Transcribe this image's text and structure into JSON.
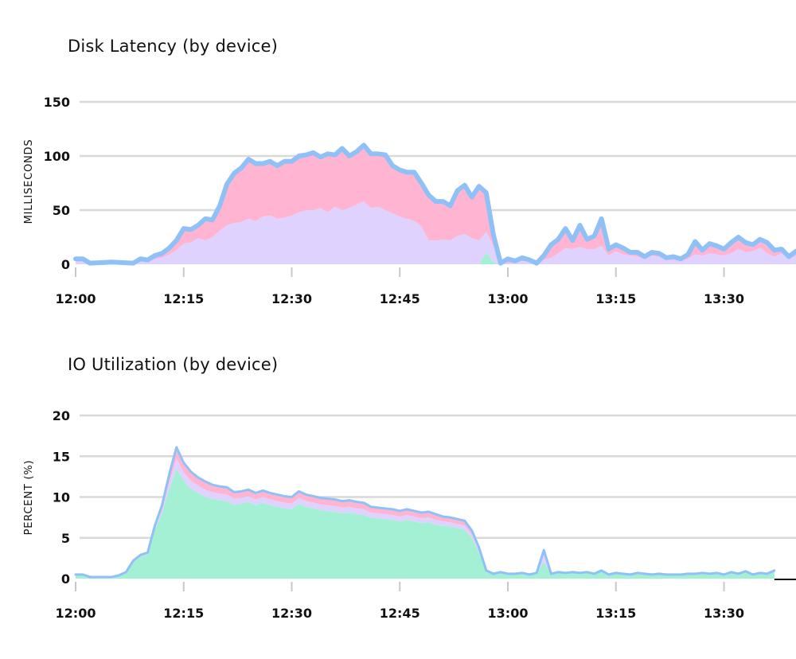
{
  "colors": {
    "green": "#a3f0d4",
    "violet": "#e0d2ff",
    "pink": "#ffb5d2",
    "outline": "#8fc1f7",
    "grid": "#d9d9d9"
  },
  "chart_data": [
    {
      "type": "area",
      "stacked": true,
      "title": "Disk Latency (by device)",
      "xlabel": "",
      "ylabel": "MILLISECONDS",
      "ylim": [
        0,
        150
      ],
      "xlim": [
        "12:00",
        "13:40"
      ],
      "x_ticks": [
        "12:00",
        "12:15",
        "12:30",
        "12:45",
        "13:00",
        "13:15",
        "13:30"
      ],
      "y_ticks": [
        "0",
        "50",
        "100",
        "150"
      ],
      "x_unit_minutes_from": "12:00",
      "x": [
        0,
        1,
        2,
        5,
        8,
        9,
        10,
        11,
        12,
        13,
        14,
        15,
        16,
        17,
        18,
        19,
        20,
        21,
        22,
        23,
        24,
        25,
        26,
        27,
        28,
        29,
        30,
        31,
        32,
        33,
        34,
        35,
        36,
        37,
        38,
        39,
        40,
        41,
        42,
        43,
        44,
        45,
        46,
        47,
        48,
        49,
        50,
        51,
        52,
        53,
        54,
        55,
        56,
        57,
        58,
        59,
        60,
        61,
        62,
        63,
        64,
        65,
        66,
        67,
        68,
        69,
        70,
        71,
        72,
        73,
        74,
        75,
        76,
        77,
        78,
        79,
        80,
        81,
        82,
        83,
        84,
        85,
        86,
        87,
        88,
        89,
        90,
        91,
        92,
        93,
        94,
        95,
        96,
        97,
        98,
        99,
        100
      ],
      "series": [
        {
          "color_key": "green",
          "values": [
            0,
            0,
            0,
            0,
            0,
            0,
            0,
            0,
            0,
            0,
            0,
            0,
            0,
            0,
            0,
            0,
            0,
            0,
            0,
            0,
            0,
            0,
            0,
            0,
            0,
            0,
            0,
            0,
            0,
            0,
            0,
            0,
            0,
            0,
            0,
            0,
            0,
            0,
            0,
            0,
            0,
            0,
            0,
            0,
            0,
            0,
            0,
            0,
            0,
            0,
            0,
            0,
            0,
            11,
            2,
            0,
            0,
            0,
            0,
            0,
            0,
            0,
            0,
            0,
            0,
            0,
            0,
            0,
            0,
            0,
            0,
            0,
            0,
            0,
            0,
            0,
            0,
            0,
            0,
            0,
            0,
            0,
            0,
            0,
            0,
            0,
            0,
            0,
            0,
            0,
            0,
            0,
            0,
            0,
            0,
            0,
            0
          ]
        },
        {
          "color_key": "violet",
          "values": [
            5,
            5,
            1,
            2,
            1,
            3,
            2,
            5,
            6,
            9,
            13,
            19,
            20,
            24,
            22,
            25,
            31,
            36,
            38,
            39,
            42,
            40,
            44,
            45,
            42,
            43,
            45,
            48,
            50,
            50,
            52,
            48,
            53,
            50,
            52,
            55,
            58,
            52,
            53,
            50,
            47,
            44,
            42,
            40,
            35,
            22,
            22,
            23,
            22,
            26,
            28,
            24,
            22,
            19,
            15,
            1,
            1,
            1,
            3,
            2,
            1,
            4,
            6,
            10,
            15,
            14,
            16,
            14,
            14,
            17,
            8,
            12,
            9,
            8,
            7,
            5,
            8,
            7,
            4,
            4,
            3,
            5,
            9,
            8,
            10,
            9,
            8,
            10,
            14,
            11,
            12,
            15,
            10,
            7,
            10,
            5,
            8
          ]
        },
        {
          "color_key": "pink",
          "values": [
            0,
            0,
            0,
            0,
            0,
            2,
            2,
            3,
            4,
            6,
            9,
            14,
            12,
            12,
            20,
            16,
            23,
            38,
            46,
            50,
            55,
            53,
            49,
            50,
            49,
            52,
            50,
            52,
            51,
            53,
            47,
            54,
            48,
            57,
            48,
            49,
            52,
            50,
            49,
            51,
            44,
            43,
            43,
            45,
            40,
            42,
            36,
            35,
            32,
            42,
            45,
            38,
            50,
            36,
            10,
            0,
            4,
            2,
            3,
            2,
            0,
            4,
            12,
            13,
            18,
            8,
            20,
            9,
            12,
            25,
            6,
            6,
            6,
            3,
            4,
            2,
            3,
            3,
            2,
            3,
            2,
            4,
            12,
            5,
            9,
            8,
            6,
            10,
            11,
            9,
            6,
            8,
            10,
            6,
            4,
            2,
            4
          ]
        }
      ]
    },
    {
      "type": "area",
      "stacked": true,
      "title": "IO Utilization (by device)",
      "xlabel": "",
      "ylabel": "PERCENT (%)",
      "ylim": [
        0,
        20
      ],
      "xlim": [
        "12:00",
        "13:40"
      ],
      "x_ticks": [
        "12:00",
        "12:15",
        "12:30",
        "12:45",
        "13:00",
        "13:15",
        "13:30"
      ],
      "y_ticks": [
        "0",
        "5",
        "10",
        "15",
        "20"
      ],
      "x": [
        0,
        1,
        2,
        5,
        6,
        7,
        8,
        9,
        10,
        11,
        12,
        13,
        14,
        15,
        16,
        17,
        18,
        19,
        20,
        21,
        22,
        23,
        24,
        25,
        26,
        27,
        28,
        29,
        30,
        31,
        32,
        33,
        34,
        35,
        36,
        37,
        38,
        39,
        40,
        41,
        42,
        43,
        44,
        45,
        46,
        47,
        48,
        49,
        50,
        51,
        52,
        53,
        54,
        55,
        56,
        57,
        58,
        59,
        60,
        61,
        62,
        63,
        64,
        65,
        66,
        67,
        68,
        69,
        70,
        71,
        72,
        73,
        74,
        75,
        76,
        77,
        78,
        79,
        80,
        81,
        82,
        83,
        84,
        85,
        86,
        87,
        88,
        89,
        90,
        91,
        92,
        93,
        94,
        95,
        96,
        97
      ],
      "series": [
        {
          "color_key": "green",
          "values": [
            0.5,
            0.5,
            0.2,
            0.2,
            0.4,
            0.8,
            2.0,
            2.7,
            3.0,
            6.0,
            8.0,
            11.0,
            13.5,
            12.0,
            11.0,
            10.5,
            10.0,
            9.8,
            9.6,
            9.5,
            9.0,
            9.2,
            9.4,
            9.0,
            9.3,
            9.0,
            8.8,
            8.6,
            8.5,
            9.2,
            8.8,
            8.6,
            8.4,
            8.3,
            8.2,
            8.0,
            8.1,
            7.9,
            7.8,
            7.5,
            7.4,
            7.3,
            7.2,
            7.0,
            7.2,
            7.0,
            6.8,
            6.9,
            6.6,
            6.5,
            6.4,
            6.2,
            6.0,
            5.0,
            3.2,
            1.0,
            0.6,
            0.8,
            0.6,
            0.6,
            0.7,
            0.5,
            0.7,
            2.0,
            0.6,
            0.8,
            0.7,
            0.8,
            0.7,
            0.8,
            0.6,
            1.0,
            0.5,
            0.7,
            0.6,
            0.5,
            0.7,
            0.6,
            0.5,
            0.6,
            0.5,
            0.5,
            0.5,
            0.6,
            0.6,
            0.7,
            0.6,
            0.7,
            0.5,
            0.8,
            0.6,
            0.9,
            0.5,
            0.7,
            0.6,
            1.0
          ]
        },
        {
          "color_key": "violet",
          "values": [
            0.0,
            0.0,
            0.0,
            0.0,
            0.0,
            0.0,
            0.1,
            0.1,
            0.1,
            0.2,
            0.4,
            0.8,
            1.2,
            1.0,
            1.0,
            0.9,
            0.9,
            0.8,
            0.8,
            0.8,
            0.8,
            0.7,
            0.7,
            0.7,
            0.7,
            0.7,
            0.7,
            0.7,
            0.7,
            0.7,
            0.7,
            0.7,
            0.7,
            0.7,
            0.7,
            0.7,
            0.7,
            0.7,
            0.7,
            0.6,
            0.6,
            0.6,
            0.6,
            0.6,
            0.6,
            0.6,
            0.6,
            0.6,
            0.6,
            0.5,
            0.5,
            0.5,
            0.5,
            0.4,
            0.3,
            0.0,
            0.0,
            0.0,
            0.0,
            0.0,
            0.0,
            0.0,
            0.0,
            1.0,
            0.0,
            0.0,
            0.0,
            0.0,
            0.0,
            0.0,
            0.0,
            0.0,
            0.0,
            0.0,
            0.0,
            0.0,
            0.0,
            0.0,
            0.0,
            0.0,
            0.0,
            0.0,
            0.0,
            0.0,
            0.0,
            0.0,
            0.0,
            0.0,
            0.0,
            0.0,
            0.0,
            0.0,
            0.0,
            0.0,
            0.0,
            0.0
          ]
        },
        {
          "color_key": "pink",
          "values": [
            0.0,
            0.0,
            0.0,
            0.0,
            0.0,
            0.0,
            0.1,
            0.1,
            0.1,
            0.3,
            0.6,
            1.0,
            1.4,
            1.2,
            1.1,
            1.0,
            1.0,
            0.9,
            0.9,
            0.9,
            0.8,
            0.8,
            0.8,
            0.8,
            0.8,
            0.8,
            0.8,
            0.8,
            0.8,
            0.8,
            0.8,
            0.8,
            0.8,
            0.8,
            0.8,
            0.8,
            0.8,
            0.8,
            0.8,
            0.7,
            0.7,
            0.7,
            0.7,
            0.7,
            0.7,
            0.7,
            0.7,
            0.7,
            0.7,
            0.6,
            0.6,
            0.6,
            0.6,
            0.5,
            0.3,
            0.0,
            0.0,
            0.0,
            0.0,
            0.0,
            0.0,
            0.0,
            0.0,
            0.5,
            0.0,
            0.0,
            0.0,
            0.0,
            0.0,
            0.0,
            0.0,
            0.0,
            0.0,
            0.0,
            0.0,
            0.0,
            0.0,
            0.0,
            0.0,
            0.0,
            0.0,
            0.0,
            0.0,
            0.0,
            0.0,
            0.0,
            0.0,
            0.0,
            0.0,
            0.0,
            0.0,
            0.0,
            0.0,
            0.0,
            0.0,
            0.0
          ]
        }
      ]
    }
  ]
}
